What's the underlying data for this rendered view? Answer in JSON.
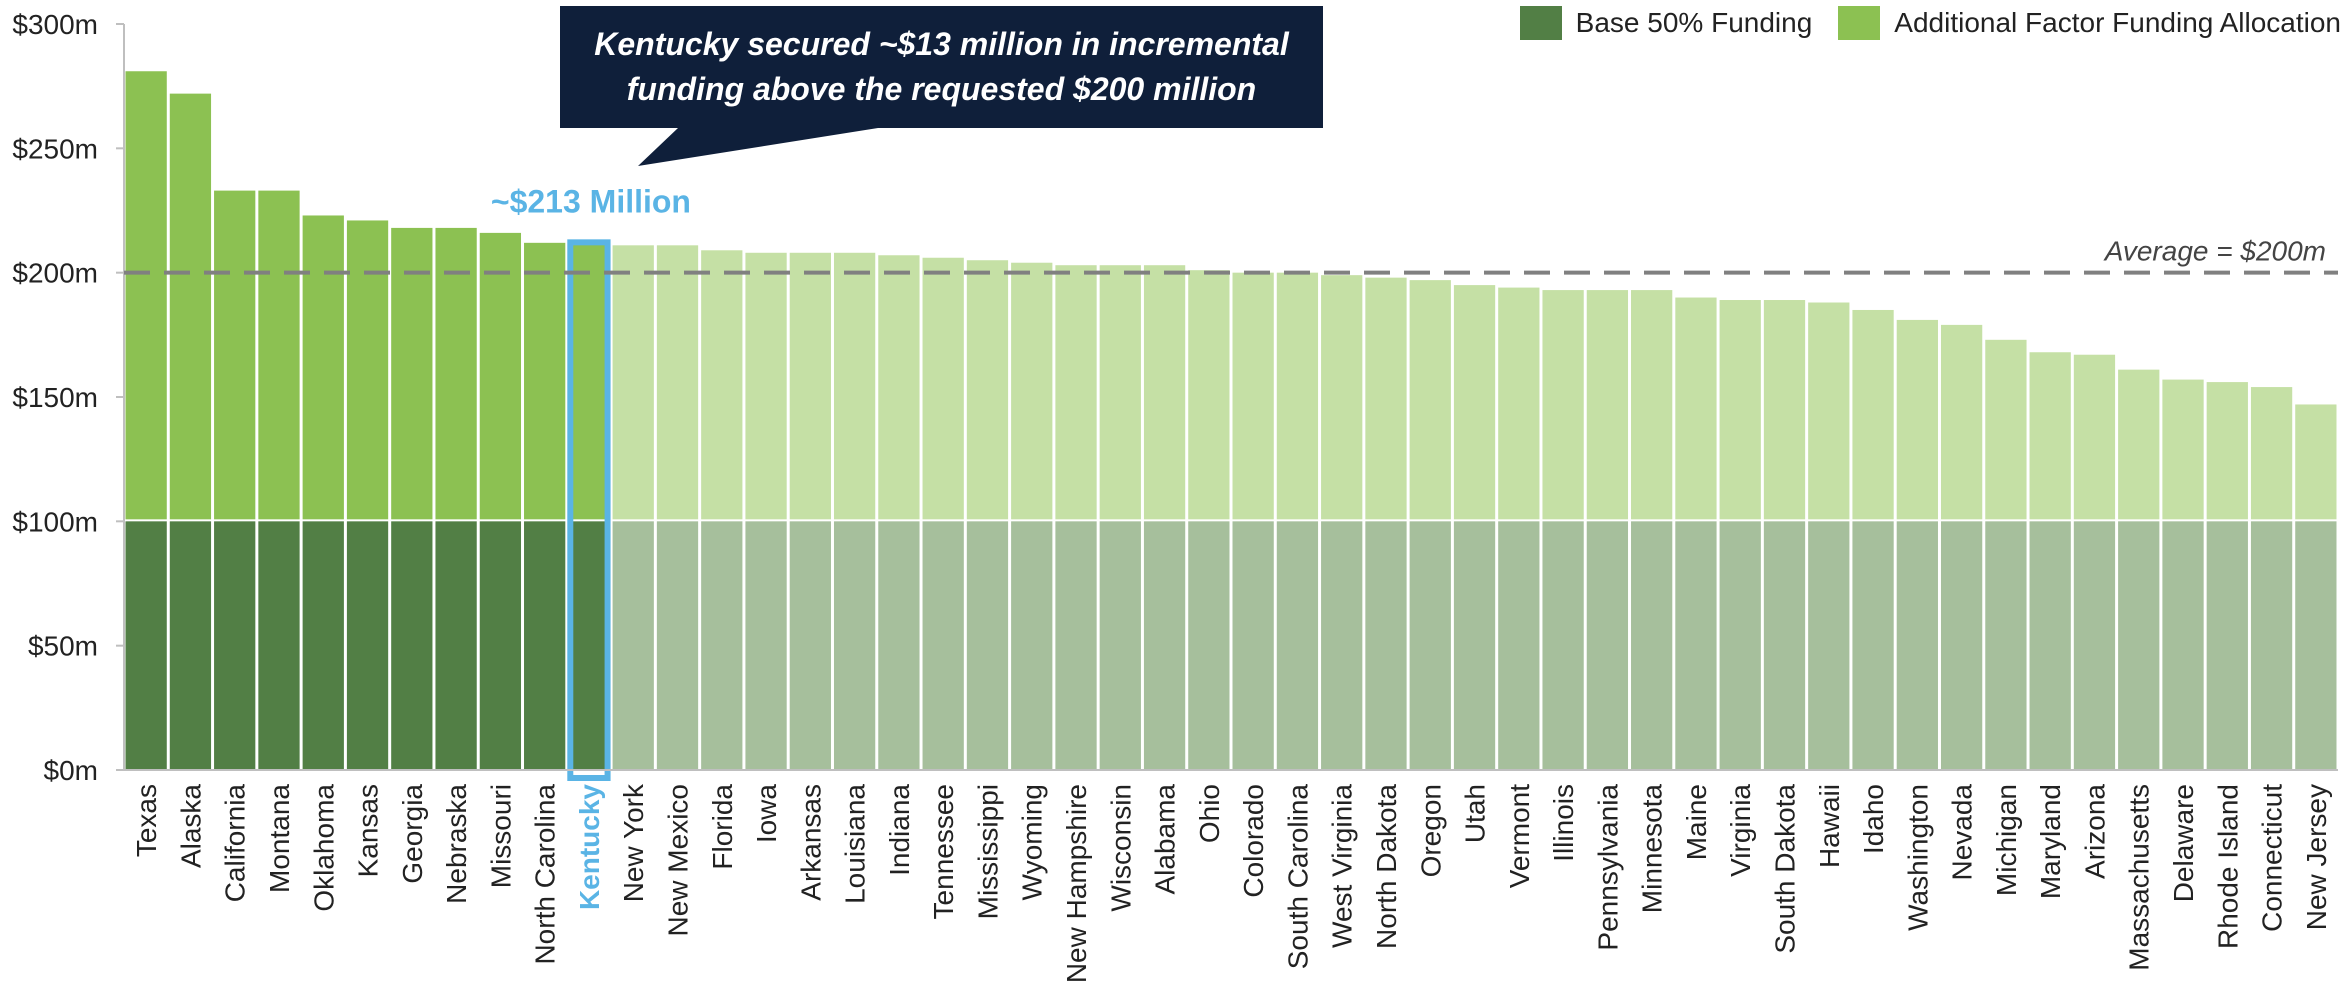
{
  "legend": {
    "base_label": "Base 50% Funding",
    "additional_label": "Additional Factor Funding Allocation"
  },
  "callout": {
    "line1": "Kentucky secured ~$13 million in incremental",
    "line2": "funding above the requested $200 million"
  },
  "highlight_label": "~$213 Million",
  "average_label": "Average = $200m",
  "colors": {
    "base_dark": "#527f45",
    "additional_dark": "#8cc152",
    "base_light": "#a6bf9c",
    "additional_light": "#c5e0a5",
    "highlight": "#5ab4e5",
    "callout_bg": "#0f1f3a",
    "average_line": "#808080"
  },
  "chart_data": {
    "type": "bar",
    "stacked": true,
    "ylim": [
      0,
      300
    ],
    "yticks": [
      {
        "value": 0,
        "label": "$0m"
      },
      {
        "value": 50,
        "label": "$50m"
      },
      {
        "value": 100,
        "label": "$100m"
      },
      {
        "value": 150,
        "label": "$150m"
      },
      {
        "value": 200,
        "label": "$200m"
      },
      {
        "value": 250,
        "label": "$250m"
      },
      {
        "value": 300,
        "label": "$300m"
      }
    ],
    "average": 200,
    "highlight_category": "Kentucky",
    "emphasized_count": 11,
    "categories": [
      "Texas",
      "Alaska",
      "California",
      "Montana",
      "Oklahoma",
      "Kansas",
      "Georgia",
      "Nebraska",
      "Missouri",
      "North Carolina",
      "Kentucky",
      "New York",
      "New Mexico",
      "Florida",
      "Iowa",
      "Arkansas",
      "Louisiana",
      "Indiana",
      "Tennessee",
      "Mississippi",
      "Wyoming",
      "New Hampshire",
      "Wisconsin",
      "Alabama",
      "Ohio",
      "Colorado",
      "South Carolina",
      "West Virginia",
      "North Dakota",
      "Oregon",
      "Utah",
      "Vermont",
      "Illinois",
      "Pennsylvania",
      "Minnesota",
      "Maine",
      "Virginia",
      "South Dakota",
      "Hawaii",
      "Idaho",
      "Washington",
      "Nevada",
      "Michigan",
      "Maryland",
      "Arizona",
      "Massachusetts",
      "Delaware",
      "Rhode Island",
      "Connecticut",
      "New Jersey"
    ],
    "series": [
      {
        "name": "Base 50% Funding",
        "values": [
          100,
          100,
          100,
          100,
          100,
          100,
          100,
          100,
          100,
          100,
          100,
          100,
          100,
          100,
          100,
          100,
          100,
          100,
          100,
          100,
          100,
          100,
          100,
          100,
          100,
          100,
          100,
          100,
          100,
          100,
          100,
          100,
          100,
          100,
          100,
          100,
          100,
          100,
          100,
          100,
          100,
          100,
          100,
          100,
          100,
          100,
          100,
          100,
          100,
          100
        ]
      },
      {
        "name": "Additional Factor Funding Allocation",
        "values": [
          181,
          172,
          133,
          133,
          123,
          121,
          118,
          118,
          116,
          112,
          113,
          111,
          111,
          109,
          108,
          108,
          108,
          107,
          106,
          105,
          104,
          103,
          103,
          103,
          101,
          100,
          100,
          99,
          98,
          97,
          95,
          94,
          93,
          93,
          93,
          90,
          89,
          89,
          88,
          85,
          81,
          79,
          73,
          68,
          67,
          61,
          57,
          56,
          54,
          47
        ]
      }
    ]
  }
}
